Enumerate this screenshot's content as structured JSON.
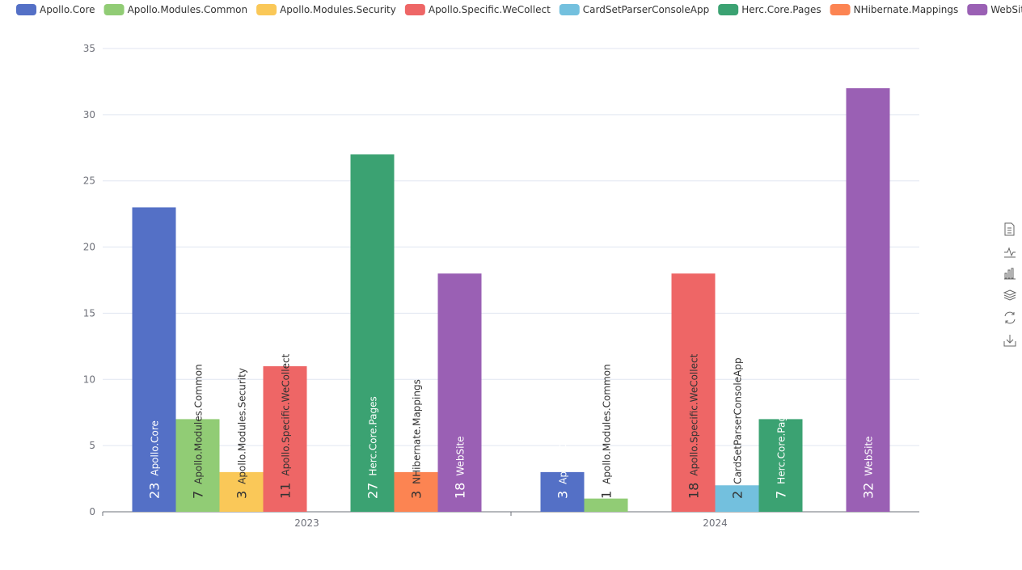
{
  "chart_data": {
    "type": "bar",
    "categories": [
      "2023",
      "2024"
    ],
    "series": [
      {
        "name": "Apollo.Core",
        "color": "#5470c6",
        "values": [
          23,
          3
        ]
      },
      {
        "name": "Apollo.Modules.Common",
        "color": "#91cc75",
        "values": [
          7,
          1
        ]
      },
      {
        "name": "Apollo.Modules.Security",
        "color": "#fac858",
        "values": [
          3,
          null
        ]
      },
      {
        "name": "Apollo.Specific.WeCollect",
        "color": "#ee6666",
        "values": [
          11,
          18
        ]
      },
      {
        "name": "CardSetParserConsoleApp",
        "color": "#73c0de",
        "values": [
          null,
          2
        ]
      },
      {
        "name": "Herc.Core.Pages",
        "color": "#3ba272",
        "values": [
          27,
          7
        ]
      },
      {
        "name": "NHibernate.Mappings",
        "color": "#fc8452",
        "values": [
          3,
          null
        ]
      },
      {
        "name": "WebSite",
        "color": "#9a60b4",
        "values": [
          18,
          32
        ]
      }
    ],
    "ylim": [
      0,
      35
    ],
    "yticks": [
      0,
      5,
      10,
      15,
      20,
      25,
      30,
      35
    ],
    "grid": true,
    "legend": "top"
  }
}
